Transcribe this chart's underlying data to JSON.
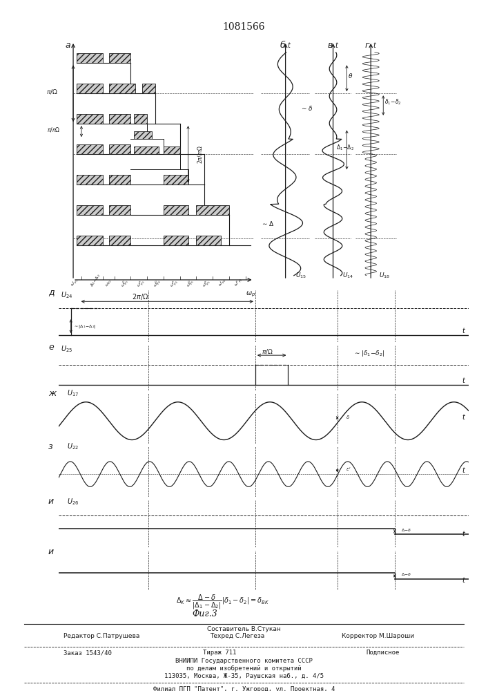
{
  "title": "1081566",
  "fig_caption": "Фиг.3",
  "line_color": "#1a1a1a",
  "label_a": "а",
  "label_b": "б",
  "label_v": "в",
  "label_g": "г",
  "label_d": "д",
  "label_e": "е",
  "label_zh": "ж",
  "label_z": "з",
  "label_i": "и",
  "label_u": "и"
}
